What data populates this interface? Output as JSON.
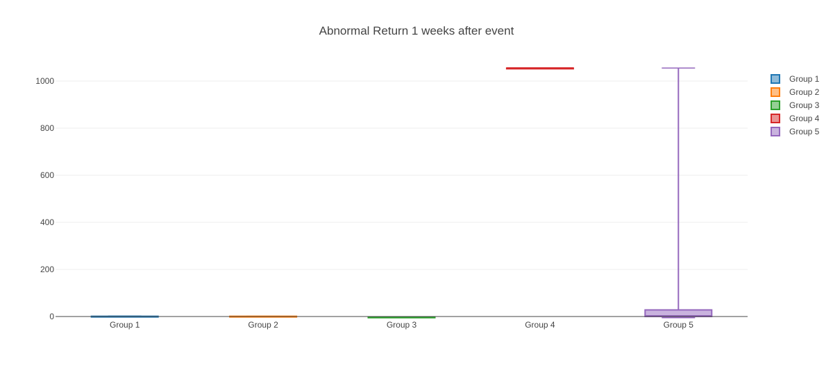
{
  "chart_data": {
    "type": "box",
    "title": "Abnormal Return 1 weeks after event",
    "xlabel": "",
    "ylabel": "",
    "ylim": [
      -20,
      1100
    ],
    "yticks": [
      0,
      200,
      400,
      600,
      800,
      1000
    ],
    "grid": true,
    "legend_position": "top-right",
    "categories": [
      "Group 1",
      "Group 2",
      "Group 3",
      "Group 4",
      "Group 5"
    ],
    "series": [
      {
        "name": "Group 1",
        "color": "#1f77b4",
        "min": -2,
        "q1": -1,
        "median": 0,
        "q3": 1,
        "max": 2
      },
      {
        "name": "Group 2",
        "color": "#ff7f0e",
        "min": -1,
        "q1": 0,
        "median": 0,
        "q3": 1,
        "max": 1
      },
      {
        "name": "Group 3",
        "color": "#2ca02c",
        "min": -4,
        "q1": -3,
        "median": -3,
        "q3": -2,
        "max": -2
      },
      {
        "name": "Group 4",
        "color": "#d62728",
        "min": 1055,
        "q1": 1055,
        "median": 1055,
        "q3": 1055,
        "max": 1055
      },
      {
        "name": "Group 5",
        "color": "#9467bd",
        "min": -5,
        "q1": 0,
        "median": 3,
        "q3": 28,
        "max": 1055
      }
    ]
  }
}
